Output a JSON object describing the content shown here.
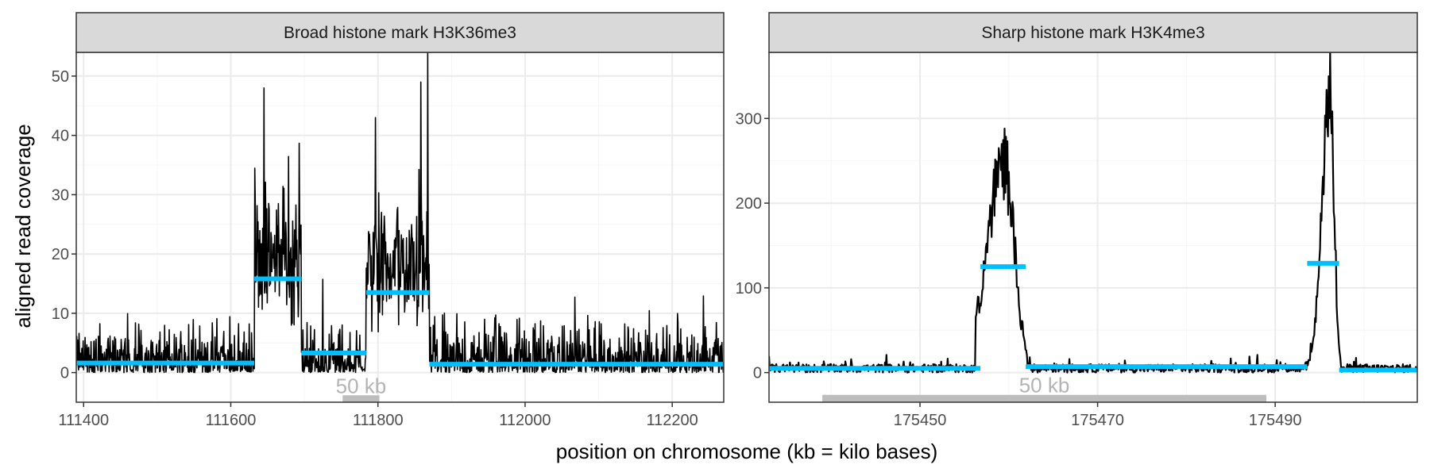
{
  "chart_data": {
    "type": "line",
    "ylabel": "aligned read coverage",
    "xlabel": "position on chromosome (kb = kilo bases)",
    "grid": true,
    "colors": {
      "signal": "#000000",
      "segment": "#00bfff",
      "scale_bar": "#bdbdbd",
      "strip_fill": "#d9d9d9",
      "grid_major": "#ebebeb",
      "grid_minor": "#f5f5f5",
      "panel_border": "#333333"
    },
    "panels": [
      {
        "title": "Broad histone mark H3K36me3",
        "xlim": [
          111390,
          112270
        ],
        "ylim": [
          -5,
          54
        ],
        "x_ticks": [
          111400,
          111600,
          111800,
          112000,
          112200
        ],
        "x_tick_labels": [
          "111400",
          "111600",
          "111800",
          "112000",
          "112200"
        ],
        "y_ticks": [
          0,
          10,
          20,
          30,
          40,
          50
        ],
        "y_tick_labels": [
          "0",
          "10",
          "20",
          "30",
          "40",
          "50"
        ],
        "segments": [
          {
            "x_start": 111390,
            "x_end": 111632,
            "mean": 1.6
          },
          {
            "x_start": 111632,
            "x_end": 111696,
            "mean": 15.8
          },
          {
            "x_start": 111696,
            "x_end": 111784,
            "mean": 3.3
          },
          {
            "x_start": 111784,
            "x_end": 111870,
            "mean": 13.5
          },
          {
            "x_start": 111870,
            "x_end": 112270,
            "mean": 1.4
          }
        ],
        "signal_peaks": [
          {
            "x": 111645,
            "y": 48
          },
          {
            "x": 111797,
            "y": 43
          },
          {
            "x": 111858,
            "y": 49
          },
          {
            "x": 111868,
            "y": 54
          }
        ],
        "scale_bar": {
          "label": "50 kb",
          "x_start": 111752,
          "x_end": 111802,
          "y": -4.5
        }
      },
      {
        "title": "Sharp histone mark H3K4me3",
        "xlim": [
          175433,
          175506
        ],
        "ylim": [
          -35,
          378
        ],
        "x_ticks": [
          175450,
          175470,
          175490
        ],
        "x_tick_labels": [
          "175450",
          "175470",
          "175490"
        ],
        "y_ticks": [
          0,
          100,
          200,
          300
        ],
        "y_tick_labels": [
          "0",
          "100",
          "200",
          "300"
        ],
        "segments": [
          {
            "x_start": 175433,
            "x_end": 175456.8,
            "mean": 5
          },
          {
            "x_start": 175456.8,
            "x_end": 175461.9,
            "mean": 125
          },
          {
            "x_start": 175461.9,
            "x_end": 175493.6,
            "mean": 7
          },
          {
            "x_start": 175493.6,
            "x_end": 175497.2,
            "mean": 129
          },
          {
            "x_start": 175497.2,
            "x_end": 175506,
            "mean": 3
          }
        ],
        "signal_peaks": [
          {
            "x": 175459.5,
            "y": 288
          },
          {
            "x": 175496.2,
            "y": 378
          }
        ],
        "scale_bar": {
          "label": "50 kb",
          "x_start": 175439,
          "x_end": 175489,
          "y": -31
        }
      }
    ]
  }
}
